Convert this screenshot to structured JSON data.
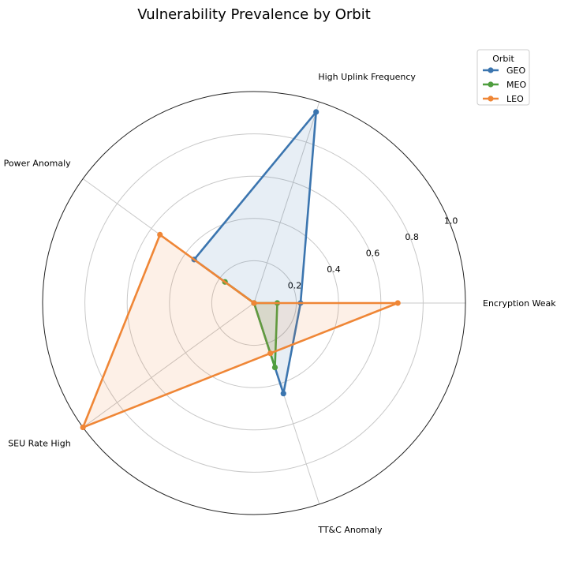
{
  "chart_data": {
    "type": "radar",
    "title": "Vulnerability Prevalence by Orbit",
    "categories": [
      "Encryption Weak",
      "High Uplink Frequency",
      "Power Anomaly",
      "SEU Rate High",
      "TT&C Anomaly"
    ],
    "rticks": [
      "0.2",
      "0.4",
      "0.6",
      "0.8",
      "1.0"
    ],
    "rlim": [
      0,
      1.0
    ],
    "grid": true,
    "legend": {
      "title": "Orbit",
      "placement": "top-right"
    },
    "series": [
      {
        "name": "GEO",
        "color": "#3b75af",
        "values": [
          0.22,
          0.95,
          0.35,
          0.0,
          0.45
        ]
      },
      {
        "name": "MEO",
        "color": "#4f9e3f",
        "values": [
          0.11,
          0.0,
          0.17,
          0.0,
          0.32
        ]
      },
      {
        "name": "LEO",
        "color": "#ef8636",
        "values": [
          0.68,
          0.0,
          0.55,
          1.0,
          0.25
        ]
      }
    ]
  }
}
